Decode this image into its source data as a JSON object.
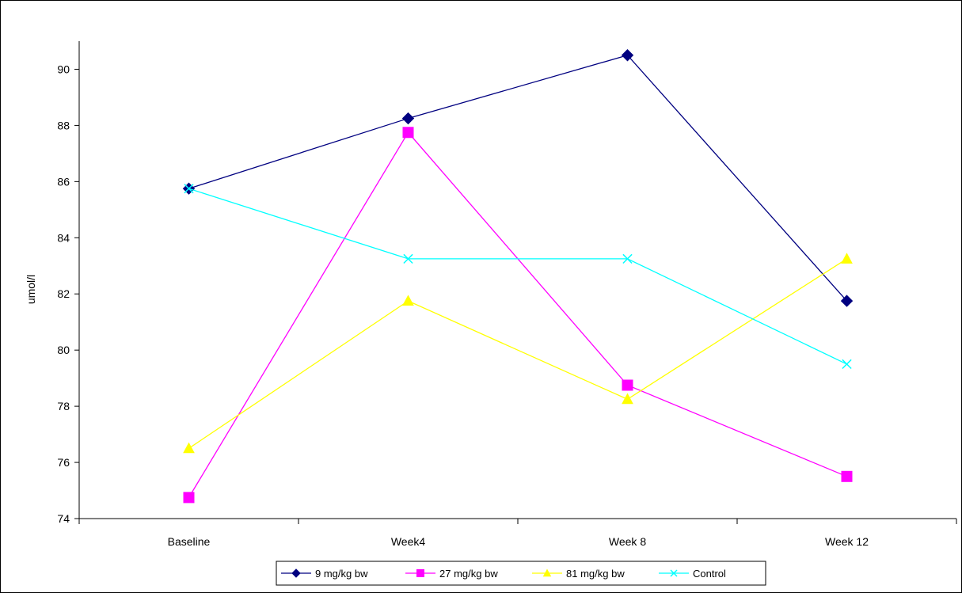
{
  "chart_data": {
    "type": "line",
    "title": "",
    "xlabel": "",
    "ylabel": "umol/l",
    "categories": [
      "Baseline",
      "Week4",
      "Week 8",
      "Week 12"
    ],
    "ylim": [
      74,
      91
    ],
    "yticks": [
      74,
      76,
      78,
      80,
      82,
      84,
      86,
      88,
      90
    ],
    "grid": false,
    "legend_position": "bottom",
    "series": [
      {
        "name": "9 mg/kg bw",
        "values": [
          85.75,
          88.25,
          90.5,
          81.75
        ],
        "color": "#000080",
        "marker": "diamond"
      },
      {
        "name": "27 mg/kg bw",
        "values": [
          74.75,
          87.75,
          78.75,
          75.5
        ],
        "color": "#ff00ff",
        "marker": "square"
      },
      {
        "name": "81 mg/kg bw",
        "values": [
          76.5,
          81.75,
          78.25,
          83.25
        ],
        "color": "#ffff00",
        "marker": "triangle"
      },
      {
        "name": "Control",
        "values": [
          85.75,
          83.25,
          83.25,
          79.5
        ],
        "color": "#00ffff",
        "marker": "x"
      }
    ]
  }
}
